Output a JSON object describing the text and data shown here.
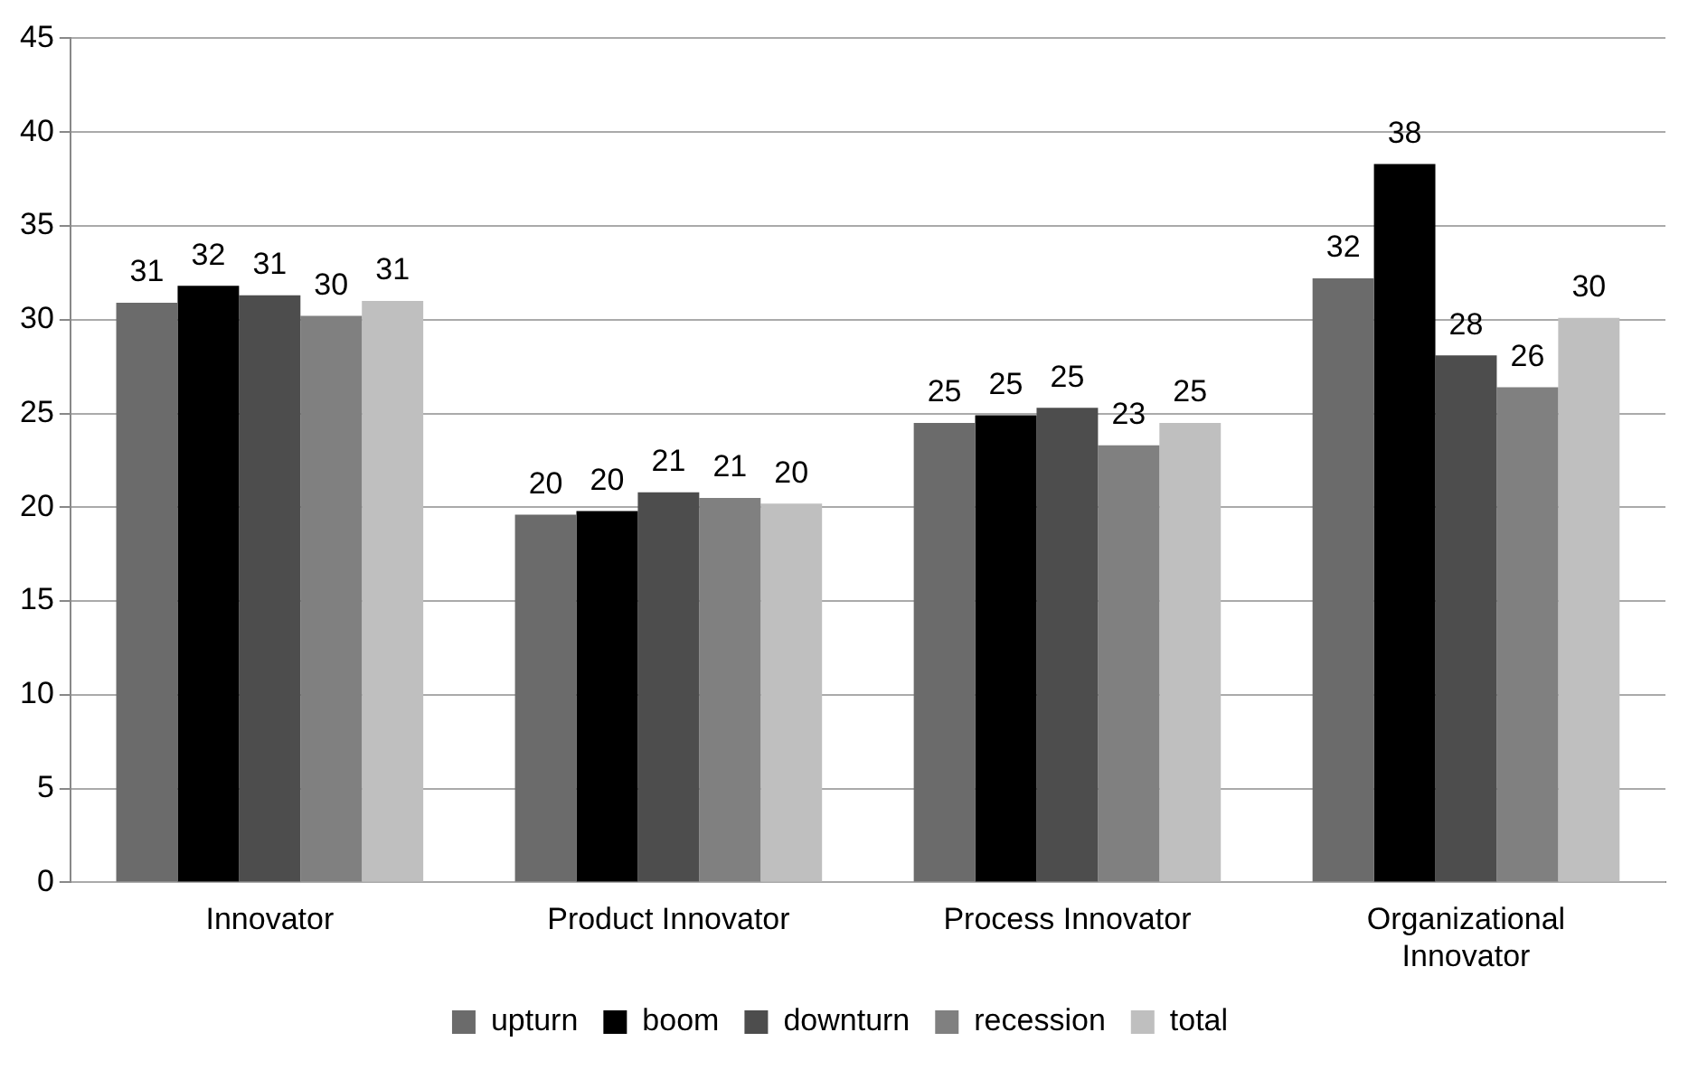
{
  "chart_data": {
    "type": "bar",
    "categories": [
      "Innovator",
      "Product Innovator",
      "Process Innovator",
      "Organizational Innovator"
    ],
    "series": [
      {
        "name": "upturn",
        "color": "#6b6b6b",
        "values": [
          30.9,
          19.6,
          24.5,
          32.2
        ],
        "value_labels": [
          "31",
          "20",
          "25",
          "32"
        ]
      },
      {
        "name": "boom",
        "color": "#000000",
        "values": [
          31.8,
          19.8,
          24.9,
          38.3
        ],
        "value_labels": [
          "32",
          "20",
          "25",
          "38"
        ]
      },
      {
        "name": "downturn",
        "color": "#4d4d4d",
        "values": [
          31.3,
          20.8,
          25.3,
          28.1
        ],
        "value_labels": [
          "31",
          "21",
          "25",
          "28"
        ]
      },
      {
        "name": "recession",
        "color": "#808080",
        "values": [
          30.2,
          20.5,
          23.3,
          26.4
        ],
        "value_labels": [
          "30",
          "21",
          "23",
          "26"
        ]
      },
      {
        "name": "total",
        "color": "#bfbfbf",
        "values": [
          31.0,
          20.2,
          24.5,
          30.1
        ],
        "value_labels": [
          "31",
          "20",
          "25",
          "30"
        ]
      }
    ],
    "ylim": [
      0,
      45
    ],
    "yticks": [
      0,
      5,
      10,
      15,
      20,
      25,
      30,
      35,
      40,
      45
    ],
    "grid": "y",
    "legend": "bottom"
  }
}
